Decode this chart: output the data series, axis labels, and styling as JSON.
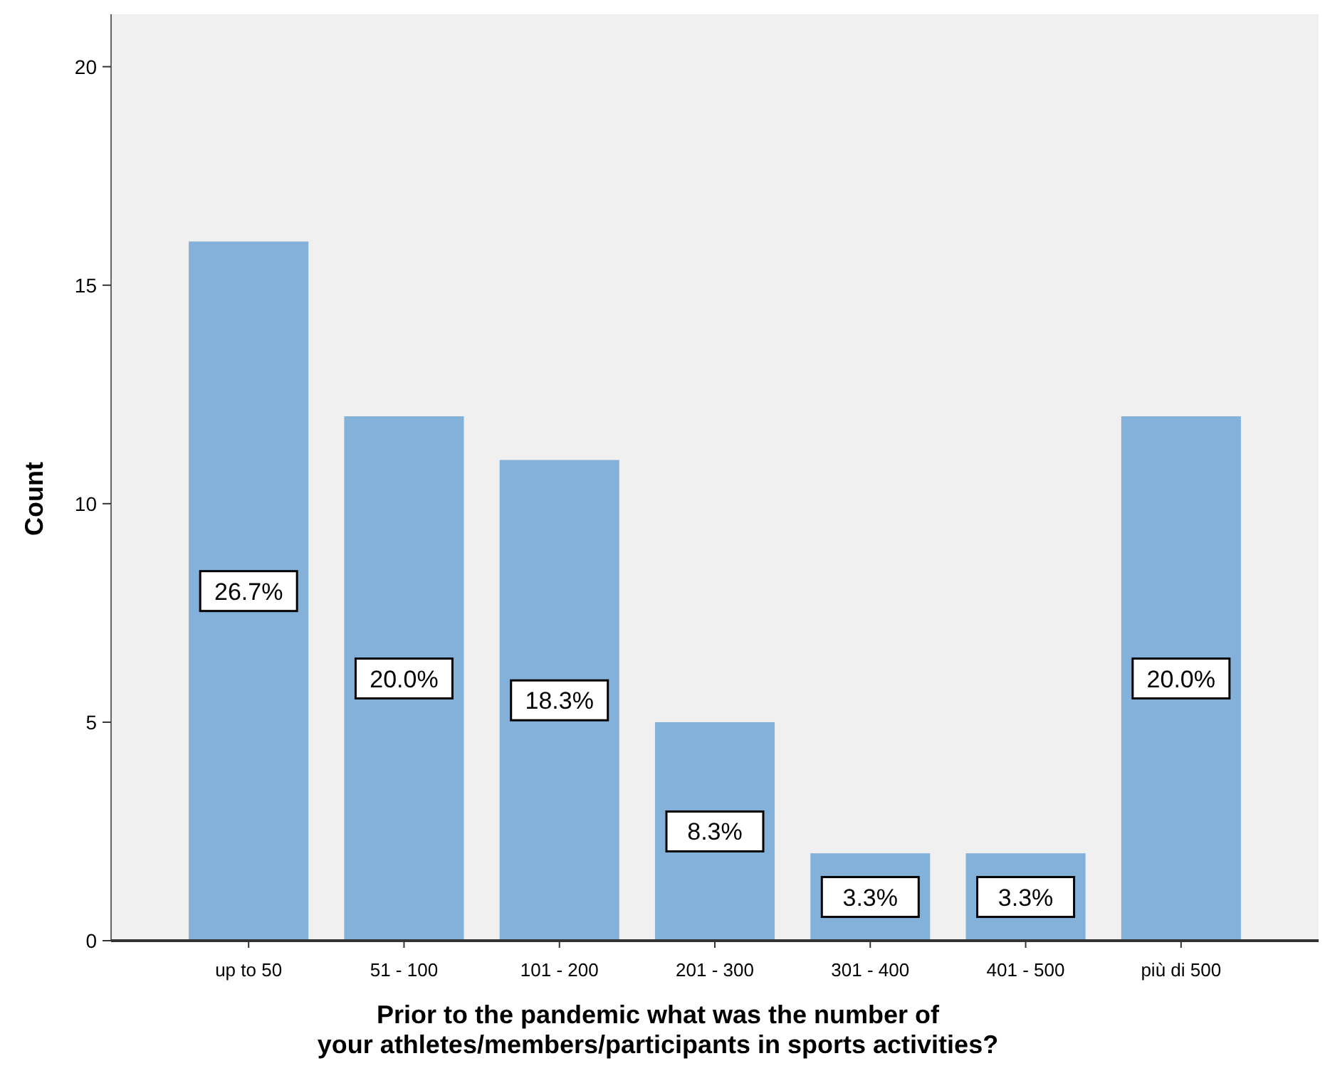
{
  "chart_data": {
    "type": "bar",
    "xlabel": "Prior to the pandemic what was the number of your athletes/members/participants in sports activities?",
    "ylabel": "Count",
    "categories": [
      "up to 50",
      "51 - 100",
      "101 - 200",
      "201 - 300",
      "301 - 400",
      "401 - 500",
      "più di 500"
    ],
    "values": [
      16,
      12,
      11,
      5,
      2,
      2,
      12
    ],
    "annotations": [
      "26.7%",
      "20.0%",
      "18.3%",
      "8.3%",
      "3.3%",
      "3.3%",
      "20.0%"
    ],
    "color": "#84b1d9",
    "ylim": [
      0,
      21.2
    ],
    "yticks": [
      0,
      5,
      10,
      15,
      20
    ],
    "grid": false
  }
}
